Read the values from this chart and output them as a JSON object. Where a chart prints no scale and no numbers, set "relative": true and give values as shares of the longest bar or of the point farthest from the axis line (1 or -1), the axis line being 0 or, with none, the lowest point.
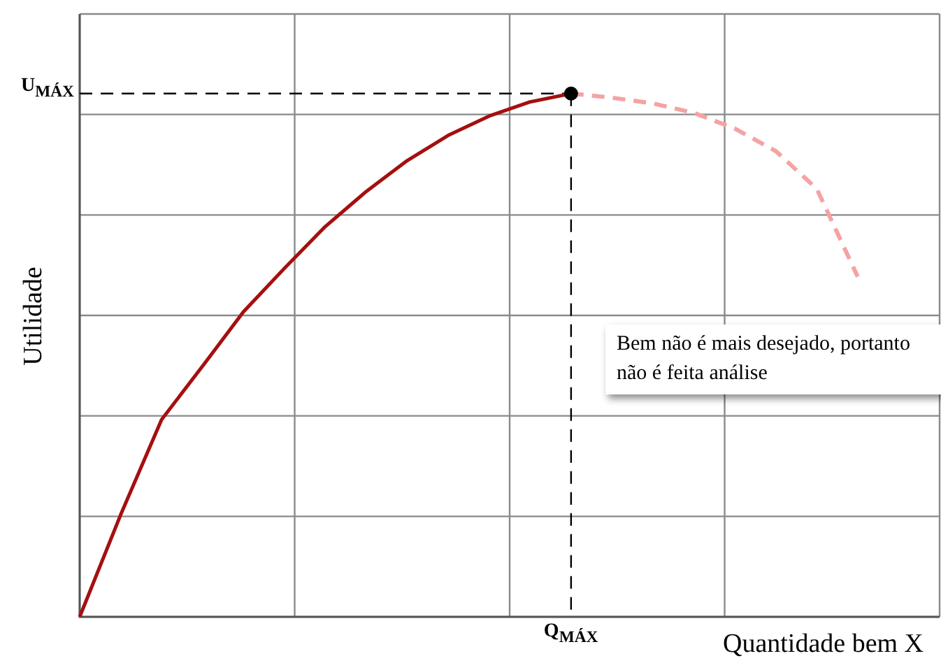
{
  "chart_data": {
    "type": "line",
    "relative": true,
    "ylabel": "Utilidade",
    "xlabel": "Quantidade bem X",
    "categories": [
      null,
      null,
      null,
      null,
      null,
      null,
      null,
      null,
      null,
      null,
      null,
      null,
      null,
      null,
      null,
      null,
      null,
      null,
      null,
      null,
      null,
      null
    ],
    "series": [
      {
        "color": "#a50f0f",
        "line_style": "solid",
        "values": [
          0,
          0.195,
          0.377,
          0.479,
          0.583,
          0.666,
          0.746,
          0.813,
          0.872,
          0.92,
          0.957,
          0.984,
          1,
          null,
          null,
          null,
          null,
          null,
          null,
          null,
          null,
          null
        ]
      },
      {
        "color": "#f4a3a3",
        "line_style": "dashed",
        "values": [
          null,
          null,
          null,
          null,
          null,
          null,
          null,
          null,
          null,
          null,
          null,
          null,
          1,
          0.992,
          0.981,
          0.963,
          0.933,
          0.89,
          0.818,
          0.65,
          null,
          null
        ]
      }
    ],
    "ref_lines": [
      {
        "axis": "y",
        "value": 1,
        "label": "U$_{MÁX}$",
        "color": "#000000",
        "line_style": "dashed"
      },
      {
        "axis": "x",
        "label": "Q$_{MÁX}$",
        "color": "#000000",
        "line_style": "dashed"
      }
    ],
    "annotations": [
      "Bem não é mais desejado, portanto não é feita análise"
    ],
    "grid": true,
    "legend": false
  }
}
